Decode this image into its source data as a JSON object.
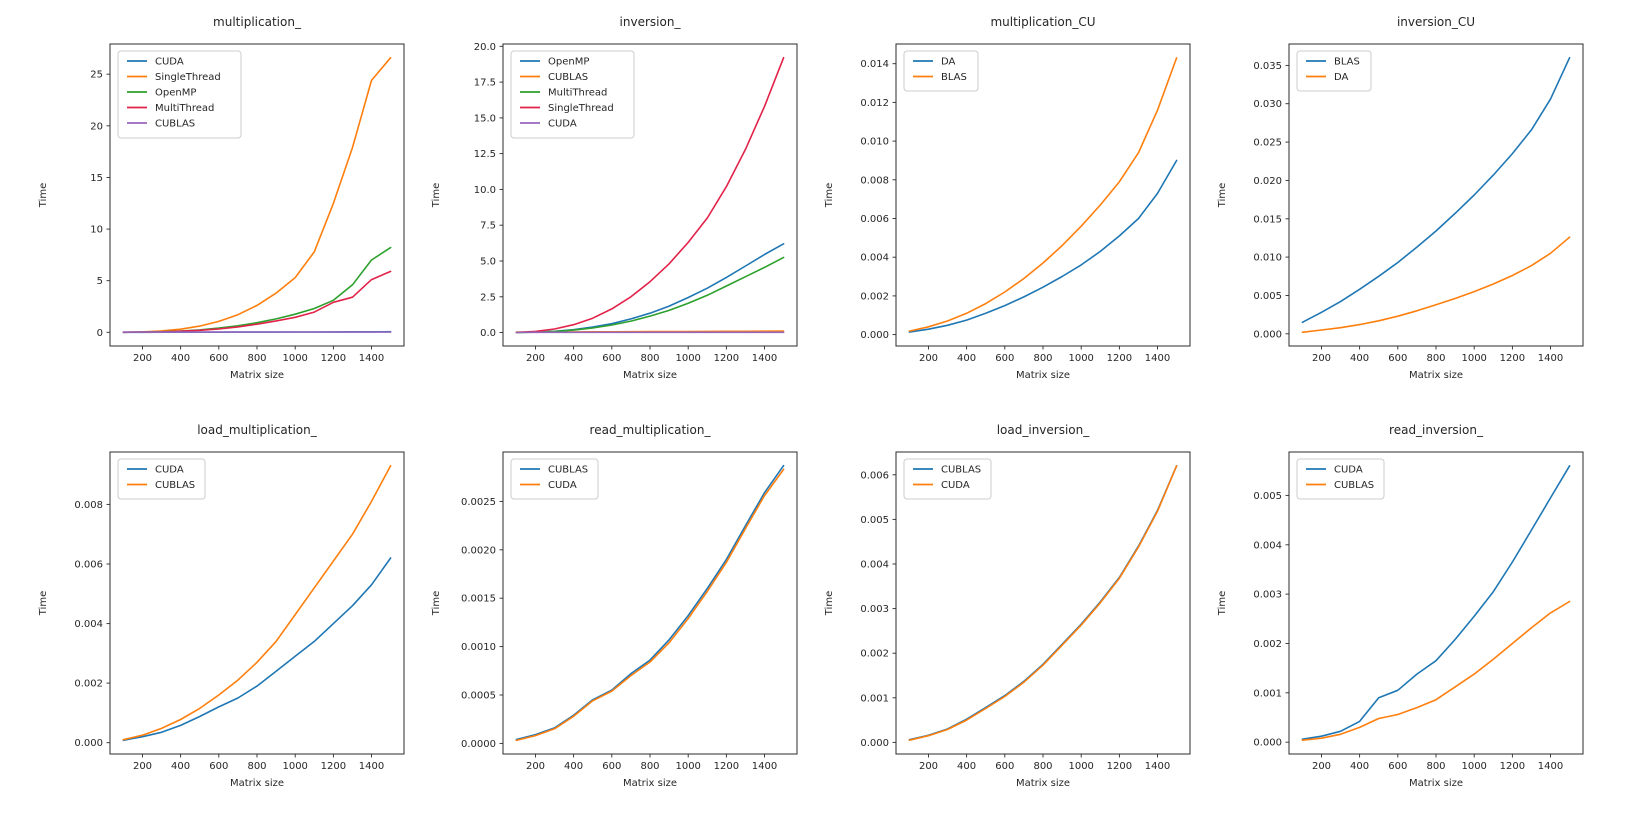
{
  "figure": {
    "background": "#ffffff",
    "text_color": "#262626",
    "spine_color": "#2b2b2b",
    "legend_border": "#cccccc"
  },
  "palette": {
    "blue": "#1f77b4",
    "orange": "#ff7f0e",
    "green": "#2ca02c",
    "red": "#e32249",
    "purple": "#9467bd"
  },
  "chart_data": [
    {
      "type": "line",
      "title": "multiplication_",
      "xlabel": "Matrix size",
      "ylabel": "Time",
      "grid": false,
      "legend_position": "top-left",
      "x": [
        100,
        200,
        300,
        400,
        500,
        600,
        700,
        800,
        900,
        1000,
        1100,
        1200,
        1300,
        1400,
        1500
      ],
      "xlim": [
        30,
        1570
      ],
      "ylim": [
        -1.33,
        27.93
      ],
      "xticks": [
        200,
        400,
        600,
        800,
        1000,
        1200,
        1400
      ],
      "ytick_vals": [
        0,
        5,
        10,
        15,
        20,
        25
      ],
      "ytick_labels": [
        "0",
        "5",
        "10",
        "15",
        "20",
        "25"
      ],
      "series": [
        {
          "name": "CUDA",
          "color": "#1f77b4",
          "values": [
            0.001,
            0.002,
            0.003,
            0.005,
            0.007,
            0.01,
            0.013,
            0.017,
            0.021,
            0.026,
            0.031,
            0.037,
            0.043,
            0.05,
            0.058
          ]
        },
        {
          "name": "SingleThread",
          "color": "#ff7f0e",
          "values": [
            0.005,
            0.04,
            0.13,
            0.3,
            0.6,
            1.05,
            1.7,
            2.6,
            3.8,
            5.3,
            7.8,
            12.5,
            17.9,
            24.4,
            26.6
          ]
        },
        {
          "name": "OpenMP",
          "color": "#2ca02c",
          "values": [
            0.002,
            0.015,
            0.05,
            0.12,
            0.23,
            0.4,
            0.63,
            0.93,
            1.3,
            1.75,
            2.3,
            3.1,
            4.6,
            7.0,
            8.2
          ]
        },
        {
          "name": "MultiThread",
          "color": "#e32249",
          "values": [
            0.002,
            0.012,
            0.04,
            0.1,
            0.19,
            0.33,
            0.52,
            0.78,
            1.1,
            1.45,
            1.95,
            2.9,
            3.4,
            5.1,
            5.9
          ]
        },
        {
          "name": "CUBLAS",
          "color": "#9467bd",
          "values": [
            0.02,
            0.02,
            0.02,
            0.02,
            0.02,
            0.02,
            0.02,
            0.02,
            0.02,
            0.02,
            0.02,
            0.02,
            0.02,
            0.02,
            0.02
          ]
        }
      ]
    },
    {
      "type": "line",
      "title": "inversion_",
      "xlabel": "Matrix size",
      "ylabel": "Time",
      "grid": false,
      "legend_position": "top-left",
      "x": [
        100,
        200,
        300,
        400,
        500,
        600,
        700,
        800,
        900,
        1000,
        1100,
        1200,
        1300,
        1400,
        1500
      ],
      "xlim": [
        30,
        1570
      ],
      "ylim": [
        -0.94,
        20.16
      ],
      "xticks": [
        200,
        400,
        600,
        800,
        1000,
        1200,
        1400
      ],
      "ytick_vals": [
        0,
        2.5,
        5,
        7.5,
        10,
        12.5,
        15,
        17.5,
        20
      ],
      "ytick_labels": [
        "0.0",
        "2.5",
        "5.0",
        "7.5",
        "10.0",
        "12.5",
        "15.0",
        "17.5",
        "20.0"
      ],
      "series": [
        {
          "name": "OpenMP",
          "color": "#1f77b4",
          "values": [
            0.005,
            0.03,
            0.09,
            0.2,
            0.38,
            0.62,
            0.95,
            1.35,
            1.85,
            2.45,
            3.1,
            3.85,
            4.65,
            5.45,
            6.2
          ]
        },
        {
          "name": "CUBLAS",
          "color": "#ff7f0e",
          "values": [
            0.03,
            0.035,
            0.04,
            0.045,
            0.05,
            0.055,
            0.06,
            0.065,
            0.07,
            0.075,
            0.08,
            0.085,
            0.09,
            0.095,
            0.1
          ]
        },
        {
          "name": "MultiThread",
          "color": "#2ca02c",
          "values": [
            0.004,
            0.025,
            0.08,
            0.17,
            0.32,
            0.53,
            0.8,
            1.15,
            1.55,
            2.05,
            2.6,
            3.25,
            3.9,
            4.55,
            5.25
          ]
        },
        {
          "name": "SingleThread",
          "color": "#e32249",
          "values": [
            0.01,
            0.08,
            0.25,
            0.55,
            1.0,
            1.65,
            2.5,
            3.55,
            4.8,
            6.3,
            8.0,
            10.2,
            12.8,
            15.8,
            19.2
          ]
        },
        {
          "name": "CUDA",
          "color": "#9467bd",
          "values": [
            0.02,
            0.02,
            0.02,
            0.02,
            0.02,
            0.02,
            0.02,
            0.02,
            0.02,
            0.02,
            0.02,
            0.02,
            0.02,
            0.02,
            0.02
          ]
        }
      ]
    },
    {
      "type": "line",
      "title": "multiplication_CU",
      "xlabel": "Matrix size",
      "ylabel": "Time",
      "grid": false,
      "legend_position": "top-left",
      "x": [
        100,
        200,
        300,
        400,
        500,
        600,
        700,
        800,
        900,
        1000,
        1100,
        1200,
        1300,
        1400,
        1500
      ],
      "xlim": [
        30,
        1570
      ],
      "ylim": [
        -0.00059,
        0.01502
      ],
      "xticks": [
        200,
        400,
        600,
        800,
        1000,
        1200,
        1400
      ],
      "ytick_vals": [
        0,
        0.002,
        0.004,
        0.006,
        0.008,
        0.01,
        0.012,
        0.014
      ],
      "ytick_labels": [
        "0.000",
        "0.002",
        "0.004",
        "0.006",
        "0.008",
        "0.010",
        "0.012",
        "0.014"
      ],
      "series": [
        {
          "name": "DA",
          "color": "#1f77b4",
          "values": [
            0.00013,
            0.00028,
            0.00048,
            0.00075,
            0.0011,
            0.0015,
            0.00195,
            0.00245,
            0.003,
            0.0036,
            0.0043,
            0.0051,
            0.006,
            0.0073,
            0.009
          ]
        },
        {
          "name": "BLAS",
          "color": "#ff7f0e",
          "values": [
            0.00018,
            0.0004,
            0.0007,
            0.0011,
            0.0016,
            0.0022,
            0.0029,
            0.0037,
            0.0046,
            0.0056,
            0.0067,
            0.0079,
            0.0094,
            0.0116,
            0.0143
          ]
        }
      ]
    },
    {
      "type": "line",
      "title": "inversion_CU",
      "xlabel": "Matrix size",
      "ylabel": "Time",
      "grid": false,
      "legend_position": "top-left",
      "x": [
        100,
        200,
        300,
        400,
        500,
        600,
        700,
        800,
        900,
        1000,
        1100,
        1200,
        1300,
        1400,
        1500
      ],
      "xlim": [
        30,
        1570
      ],
      "ylim": [
        -0.00159,
        0.03779
      ],
      "xticks": [
        200,
        400,
        600,
        800,
        1000,
        1200,
        1400
      ],
      "ytick_vals": [
        0,
        0.005,
        0.01,
        0.015,
        0.02,
        0.025,
        0.03,
        0.035
      ],
      "ytick_labels": [
        "0.000",
        "0.005",
        "0.010",
        "0.015",
        "0.020",
        "0.025",
        "0.030",
        "0.035"
      ],
      "series": [
        {
          "name": "BLAS",
          "color": "#1f77b4",
          "values": [
            0.0015,
            0.0028,
            0.0042,
            0.0058,
            0.0075,
            0.0093,
            0.0113,
            0.0134,
            0.0157,
            0.0181,
            0.0207,
            0.0235,
            0.0266,
            0.0306,
            0.036
          ]
        },
        {
          "name": "DA",
          "color": "#ff7f0e",
          "values": [
            0.0002,
            0.0005,
            0.0008,
            0.0012,
            0.0017,
            0.0023,
            0.003,
            0.0038,
            0.0046,
            0.0055,
            0.0065,
            0.0076,
            0.0089,
            0.0105,
            0.0126
          ]
        }
      ]
    },
    {
      "type": "line",
      "title": "load_multiplication_",
      "xlabel": "Matrix size",
      "ylabel": "Time",
      "grid": false,
      "legend_position": "top-left",
      "x": [
        100,
        200,
        300,
        400,
        500,
        600,
        700,
        800,
        900,
        1000,
        1100,
        1200,
        1300,
        1400,
        1500
      ],
      "xlim": [
        30,
        1570
      ],
      "ylim": [
        -0.00038,
        0.00976
      ],
      "xticks": [
        200,
        400,
        600,
        800,
        1000,
        1200,
        1400
      ],
      "ytick_vals": [
        0,
        0.002,
        0.004,
        0.006,
        0.008
      ],
      "ytick_labels": [
        "0.000",
        "0.002",
        "0.004",
        "0.006",
        "0.008"
      ],
      "series": [
        {
          "name": "CUDA",
          "color": "#1f77b4",
          "values": [
            8e-05,
            0.0002,
            0.00035,
            0.00058,
            0.00088,
            0.0012,
            0.0015,
            0.0019,
            0.0024,
            0.0029,
            0.0034,
            0.004,
            0.0046,
            0.0053,
            0.0062
          ]
        },
        {
          "name": "CUBLAS",
          "color": "#ff7f0e",
          "values": [
            0.0001,
            0.00025,
            0.00048,
            0.00078,
            0.00115,
            0.0016,
            0.0021,
            0.0027,
            0.0034,
            0.0043,
            0.0052,
            0.0061,
            0.007,
            0.0081,
            0.0093
          ]
        }
      ]
    },
    {
      "type": "line",
      "title": "read_multiplication_",
      "xlabel": "Matrix size",
      "ylabel": "Time",
      "grid": false,
      "legend_position": "top-left",
      "x": [
        100,
        200,
        300,
        400,
        500,
        600,
        700,
        800,
        900,
        1000,
        1100,
        1200,
        1300,
        1400,
        1500
      ],
      "xlim": [
        30,
        1570
      ],
      "ylim": [
        -0.00011,
        0.00301
      ],
      "xticks": [
        200,
        400,
        600,
        800,
        1000,
        1200,
        1400
      ],
      "ytick_vals": [
        0,
        0.0005,
        0.001,
        0.0015,
        0.002,
        0.0025
      ],
      "ytick_labels": [
        "0.0000",
        "0.0005",
        "0.0010",
        "0.0015",
        "0.0020",
        "0.0025"
      ],
      "series": [
        {
          "name": "CUBLAS",
          "color": "#1f77b4",
          "values": [
            4e-05,
            9e-05,
            0.00016,
            0.00029,
            0.00045,
            0.00055,
            0.00072,
            0.00086,
            0.00107,
            0.00132,
            0.0016,
            0.0019,
            0.00225,
            0.00259,
            0.00287
          ]
        },
        {
          "name": "CUDA",
          "color": "#ff7f0e",
          "values": [
            3e-05,
            8e-05,
            0.00015,
            0.00028,
            0.00044,
            0.00054,
            0.0007,
            0.00084,
            0.00104,
            0.00129,
            0.00157,
            0.00187,
            0.00222,
            0.00256,
            0.00283
          ]
        }
      ]
    },
    {
      "type": "line",
      "title": "load_inversion_",
      "xlabel": "Matrix size",
      "ylabel": "Time",
      "grid": false,
      "legend_position": "top-left",
      "x": [
        100,
        200,
        300,
        400,
        500,
        600,
        700,
        800,
        900,
        1000,
        1100,
        1200,
        1300,
        1400,
        1500
      ],
      "xlim": [
        30,
        1570
      ],
      "ylim": [
        -0.00026,
        0.00651
      ],
      "xticks": [
        200,
        400,
        600,
        800,
        1000,
        1200,
        1400
      ],
      "ytick_vals": [
        0,
        0.001,
        0.002,
        0.003,
        0.004,
        0.005,
        0.006
      ],
      "ytick_labels": [
        "0.000",
        "0.001",
        "0.002",
        "0.003",
        "0.004",
        "0.005",
        "0.006"
      ],
      "series": [
        {
          "name": "CUBLAS",
          "color": "#1f77b4",
          "values": [
            6e-05,
            0.00016,
            0.0003,
            0.00052,
            0.00078,
            0.00105,
            0.00137,
            0.00175,
            0.0022,
            0.00265,
            0.00315,
            0.0037,
            0.0044,
            0.0052,
            0.0062
          ]
        },
        {
          "name": "CUDA",
          "color": "#ff7f0e",
          "values": [
            5e-05,
            0.00015,
            0.00029,
            0.0005,
            0.00076,
            0.00103,
            0.00135,
            0.00173,
            0.00218,
            0.00263,
            0.00313,
            0.00368,
            0.00438,
            0.00518,
            0.0062
          ]
        }
      ]
    },
    {
      "type": "line",
      "title": "read_inversion_",
      "xlabel": "Matrix size",
      "ylabel": "Time",
      "grid": false,
      "legend_position": "top-left",
      "x": [
        100,
        200,
        300,
        400,
        500,
        600,
        700,
        800,
        900,
        1000,
        1100,
        1200,
        1300,
        1400,
        1500
      ],
      "xlim": [
        30,
        1570
      ],
      "ylim": [
        -0.00024,
        0.00588
      ],
      "xticks": [
        200,
        400,
        600,
        800,
        1000,
        1200,
        1400
      ],
      "ytick_vals": [
        0,
        0.001,
        0.002,
        0.003,
        0.004,
        0.005
      ],
      "ytick_labels": [
        "0.000",
        "0.001",
        "0.002",
        "0.003",
        "0.004",
        "0.005"
      ],
      "series": [
        {
          "name": "CUDA",
          "color": "#1f77b4",
          "values": [
            6e-05,
            0.00012,
            0.00022,
            0.00042,
            0.0009,
            0.00105,
            0.00138,
            0.00165,
            0.00208,
            0.00255,
            0.00305,
            0.00365,
            0.0043,
            0.00495,
            0.0056
          ]
        },
        {
          "name": "CUBLAS",
          "color": "#ff7f0e",
          "values": [
            4e-05,
            8e-05,
            0.00016,
            0.0003,
            0.00048,
            0.00056,
            0.0007,
            0.00086,
            0.00112,
            0.00138,
            0.00168,
            0.002,
            0.00232,
            0.00262,
            0.00285
          ]
        }
      ]
    }
  ]
}
